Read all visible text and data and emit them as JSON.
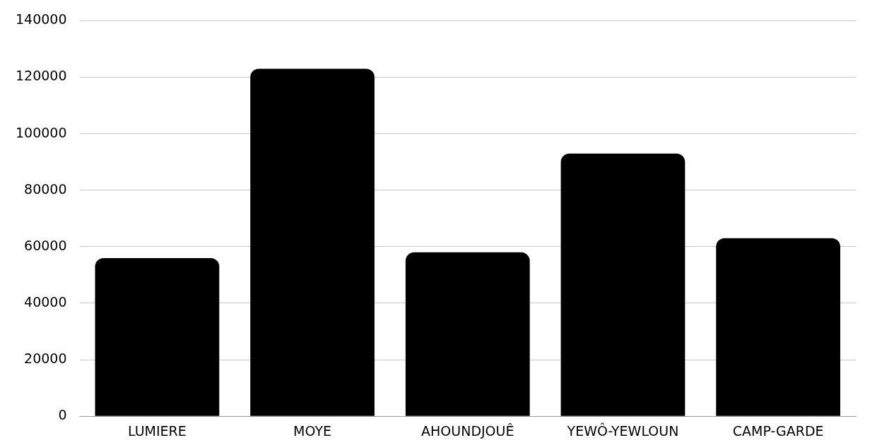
{
  "chart_data": {
    "type": "bar",
    "categories": [
      "LUMIERE",
      "MOYE",
      "AHOUNDJOUÊ",
      "YEWÔ-YEWLOUN",
      "CAMP-GARDE"
    ],
    "values": [
      56000,
      123000,
      58000,
      93000,
      63000
    ],
    "color": "#000000",
    "ylim": [
      0,
      140000
    ],
    "yticks": [
      0,
      20000,
      40000,
      60000,
      80000,
      100000,
      120000,
      140000
    ],
    "grid": "y",
    "legend": false
  }
}
